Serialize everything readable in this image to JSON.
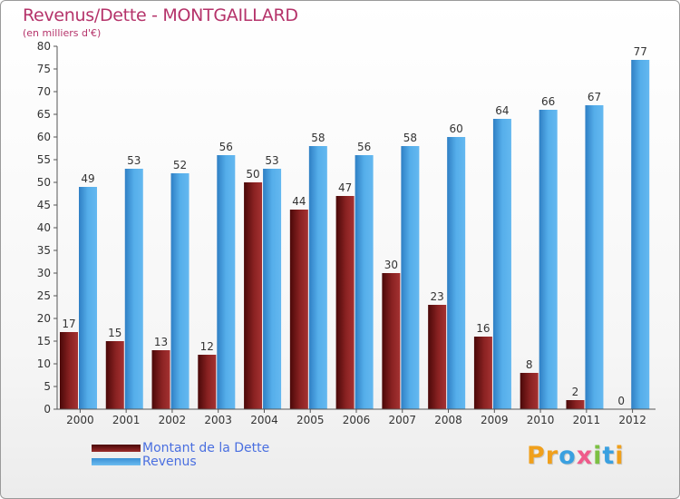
{
  "title": "Revenus/Dette - MONTGAILLARD",
  "subtitle": "(en milliers d'€)",
  "legend": {
    "debt_label": "Montant de la Dette",
    "revenue_label": "Revenus"
  },
  "logo": {
    "letters": [
      "P",
      "r",
      "o",
      "x",
      "i",
      "t",
      "i"
    ],
    "colors": [
      "#f0a01c",
      "#f0a01c",
      "#3aa0e0",
      "#ef5a8a",
      "#7cc043",
      "#3aa0e0",
      "#f0a01c"
    ]
  },
  "colors": {
    "debt": "#7d1a1a",
    "revenue": "#4aa6e6",
    "title": "#b5336a",
    "legend_text": "#4a6fe0"
  },
  "chart_data": {
    "type": "bar",
    "title": "Revenus/Dette - MONTGAILLARD",
    "ylabel": "(en milliers d'€)",
    "xlabel": "",
    "categories": [
      "2000",
      "2001",
      "2002",
      "2003",
      "2004",
      "2005",
      "2006",
      "2007",
      "2008",
      "2009",
      "2010",
      "2011",
      "2012"
    ],
    "series": [
      {
        "name": "Montant de la Dette",
        "values": [
          17,
          15,
          13,
          12,
          50,
          44,
          47,
          30,
          23,
          16,
          8,
          2,
          0
        ]
      },
      {
        "name": "Revenus",
        "values": [
          49,
          53,
          52,
          56,
          53,
          58,
          56,
          58,
          60,
          64,
          66,
          67,
          77
        ]
      }
    ],
    "ylim": [
      0,
      80
    ],
    "ytick_step": 5,
    "grid": false,
    "legend_position": "bottom-left",
    "data_labels": true
  }
}
